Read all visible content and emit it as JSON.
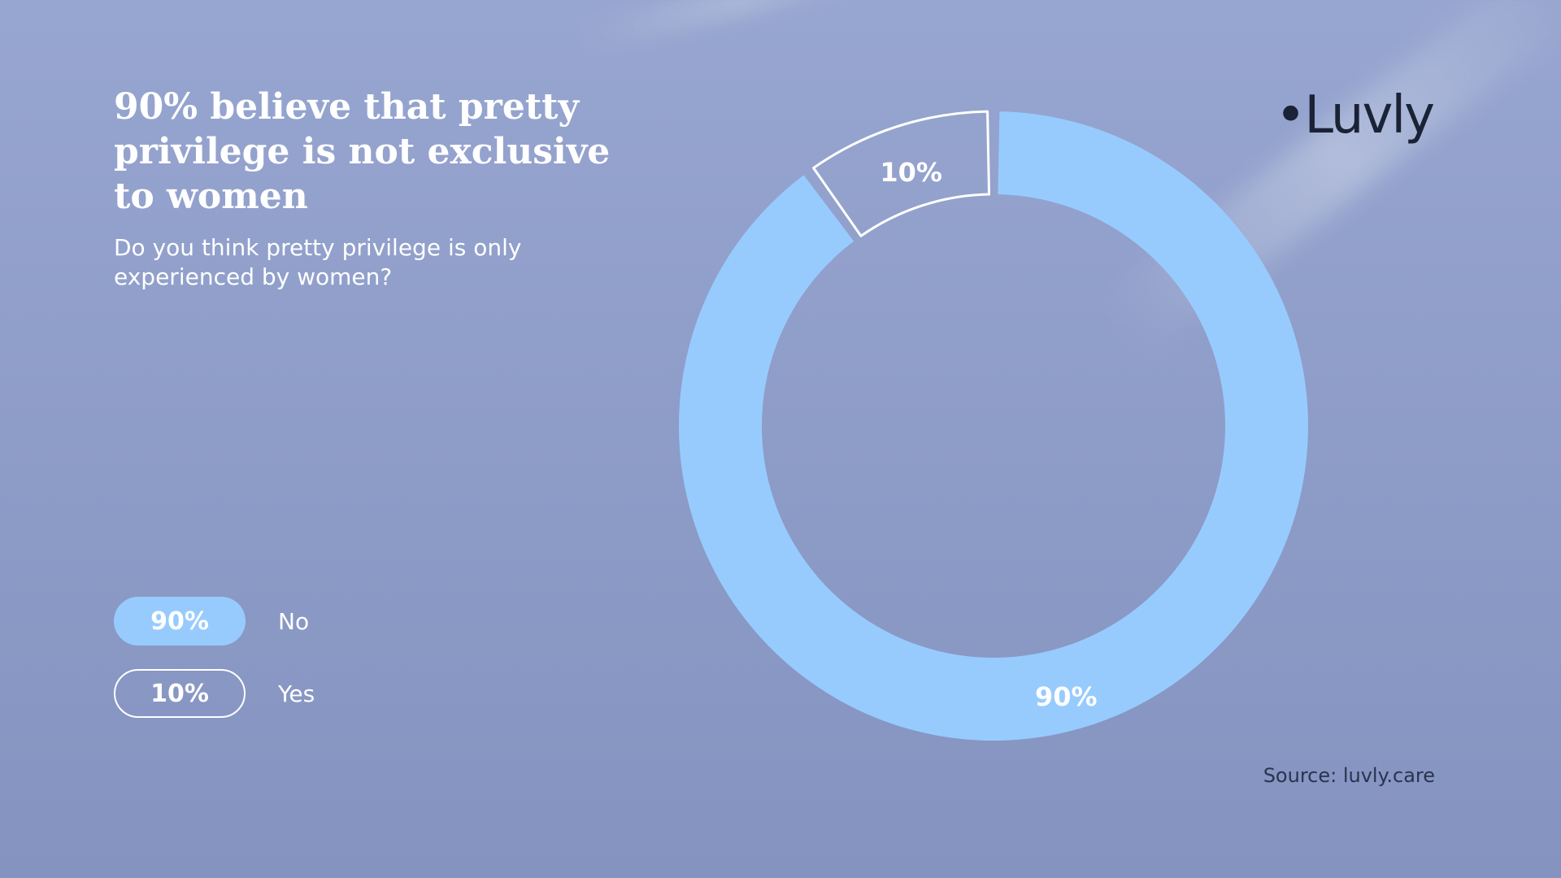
{
  "title": "90% believe that pretty privilege is not exclusive to women",
  "subtitle": "Do you think pretty privilege is only experienced by women?",
  "brand": "•Luvly",
  "source": "Source: luvly.care",
  "colors": {
    "no": "#97cbfe",
    "yes_outline": "#ffffff",
    "brand": "#1a2236"
  },
  "legend": [
    {
      "value_label": "90%",
      "label": "No",
      "style": "filled"
    },
    {
      "value_label": "10%",
      "label": "Yes",
      "style": "outline"
    }
  ],
  "chart_data": {
    "type": "pie",
    "variant": "donut",
    "title": "90% believe that pretty privilege is not exclusive to women",
    "subtitle": "Do you think pretty privilege is only experienced by women?",
    "categories": [
      "No",
      "Yes"
    ],
    "values": [
      90,
      10
    ],
    "data_labels": [
      "90%",
      "10%"
    ],
    "legend_position": "left"
  }
}
